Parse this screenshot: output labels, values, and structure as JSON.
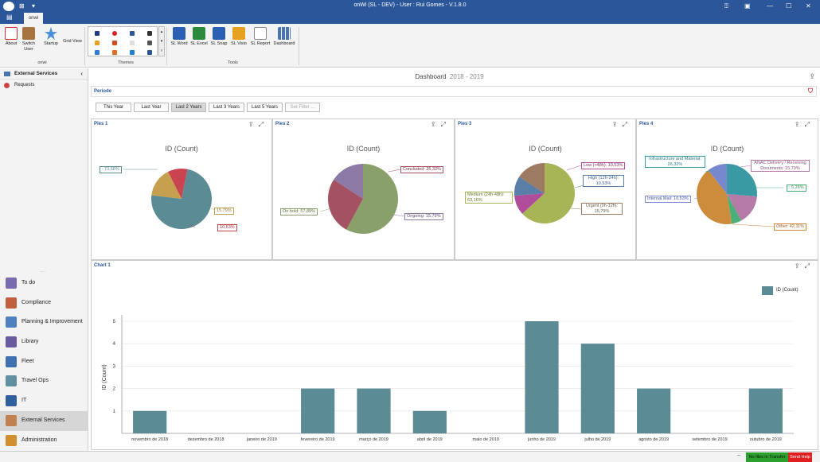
{
  "app": {
    "title": "onWi (SL - DEV) - User : Rui Gomes - V.1.8.0",
    "tab": "onwi"
  },
  "ribbon": {
    "about": "About",
    "switch_user": "Switch User",
    "startup": "Startup",
    "grid_view": "Grid View",
    "group_onwi": "onwi",
    "group_themes": "Themes",
    "group_tools": "Tools",
    "tools": [
      "SL Word",
      "SL Excel",
      "SL Snap",
      "SL Visio",
      "SL Report",
      "Dashboard"
    ]
  },
  "sidebar": {
    "header": "External Services",
    "sub_item": "Requests",
    "nav": [
      "To do",
      "Compliance",
      "Planning & Improvement",
      "Library",
      "Fleet",
      "Travel Ops",
      "IT",
      "External Services",
      "Administration"
    ]
  },
  "dashboard": {
    "title": "Dashboard",
    "year_range": "2018 - 2019",
    "periode_label": "Periode",
    "period_buttons": [
      "This Year",
      "Last Year",
      "Last 2 Years",
      "Last 3 Years",
      "Last 5 Years",
      "Set Filter ..."
    ],
    "selected_period": "Last 2 Years"
  },
  "pies": [
    {
      "name": "Pies 1",
      "title": "ID (Count)",
      "labels": [
        ": 73,68%",
        "15,79%",
        "10,53%"
      ],
      "values": [
        73.68,
        15.79,
        10.53
      ],
      "colors": [
        "#5b8b95",
        "#c6a04e",
        "#c9444e"
      ]
    },
    {
      "name": "Pies 2",
      "title": "ID (Count)",
      "labels": [
        "On hold: 57,89%",
        "Concluded: 26,32%",
        "Ongoing: 15,79%"
      ],
      "values": [
        57.89,
        26.32,
        15.79
      ],
      "colors": [
        "#8aa06a",
        "#a45161",
        "#8b7aa5"
      ]
    },
    {
      "name": "Pies 3",
      "title": "ID (Count)",
      "labels": [
        "Medium (24h-48h): 63,16%",
        "Low (>48h): 10,53%",
        "High (12h-24h): 10,53%",
        "Urgent (0h-12h): 15,79%"
      ],
      "values": [
        63.16,
        10.53,
        10.53,
        15.79
      ],
      "colors": [
        "#a8b455",
        "#b04c9c",
        "#5a7fa7",
        "#9d7a62"
      ]
    },
    {
      "name": "Pies 4",
      "title": "ID (Count)",
      "labels": [
        "Infrastructure and Material: 26,32%",
        "ANAC Delivery / Receiving Documents: 15,79%",
        ": 5,26%",
        "Other: 42,11%",
        "Internal Mail: 10,53%"
      ],
      "values": [
        26.32,
        15.79,
        5.26,
        42.11,
        10.53
      ],
      "colors": [
        "#3a9aa3",
        "#b57aa5",
        "#4caf7a",
        "#cc8c3c",
        "#7788cc"
      ]
    }
  ],
  "chart_data": {
    "type": "bar",
    "title": "Chart 1",
    "ylabel": "ID (Count)",
    "xlabel": "",
    "legend": "ID (Count)",
    "legend_position": "top-right",
    "categories": [
      "novembro de 2018",
      "dezembro de 2018",
      "janeiro de 2019",
      "fevereiro de 2019",
      "março de 2019",
      "abril de 2019",
      "maio de 2019",
      "junho de 2019",
      "julho de 2019",
      "agosto de 2019",
      "setembro de 2019",
      "outubro de 2019"
    ],
    "values": [
      1,
      0,
      0,
      2,
      2,
      1,
      0,
      5,
      4,
      2,
      0,
      2
    ],
    "ylim": [
      0,
      5
    ],
    "yticks": [
      1,
      2,
      3,
      4,
      5
    ],
    "color": "#5b8b95"
  },
  "status": {
    "transfer": "No files in Transfer",
    "help": "Send Help"
  }
}
